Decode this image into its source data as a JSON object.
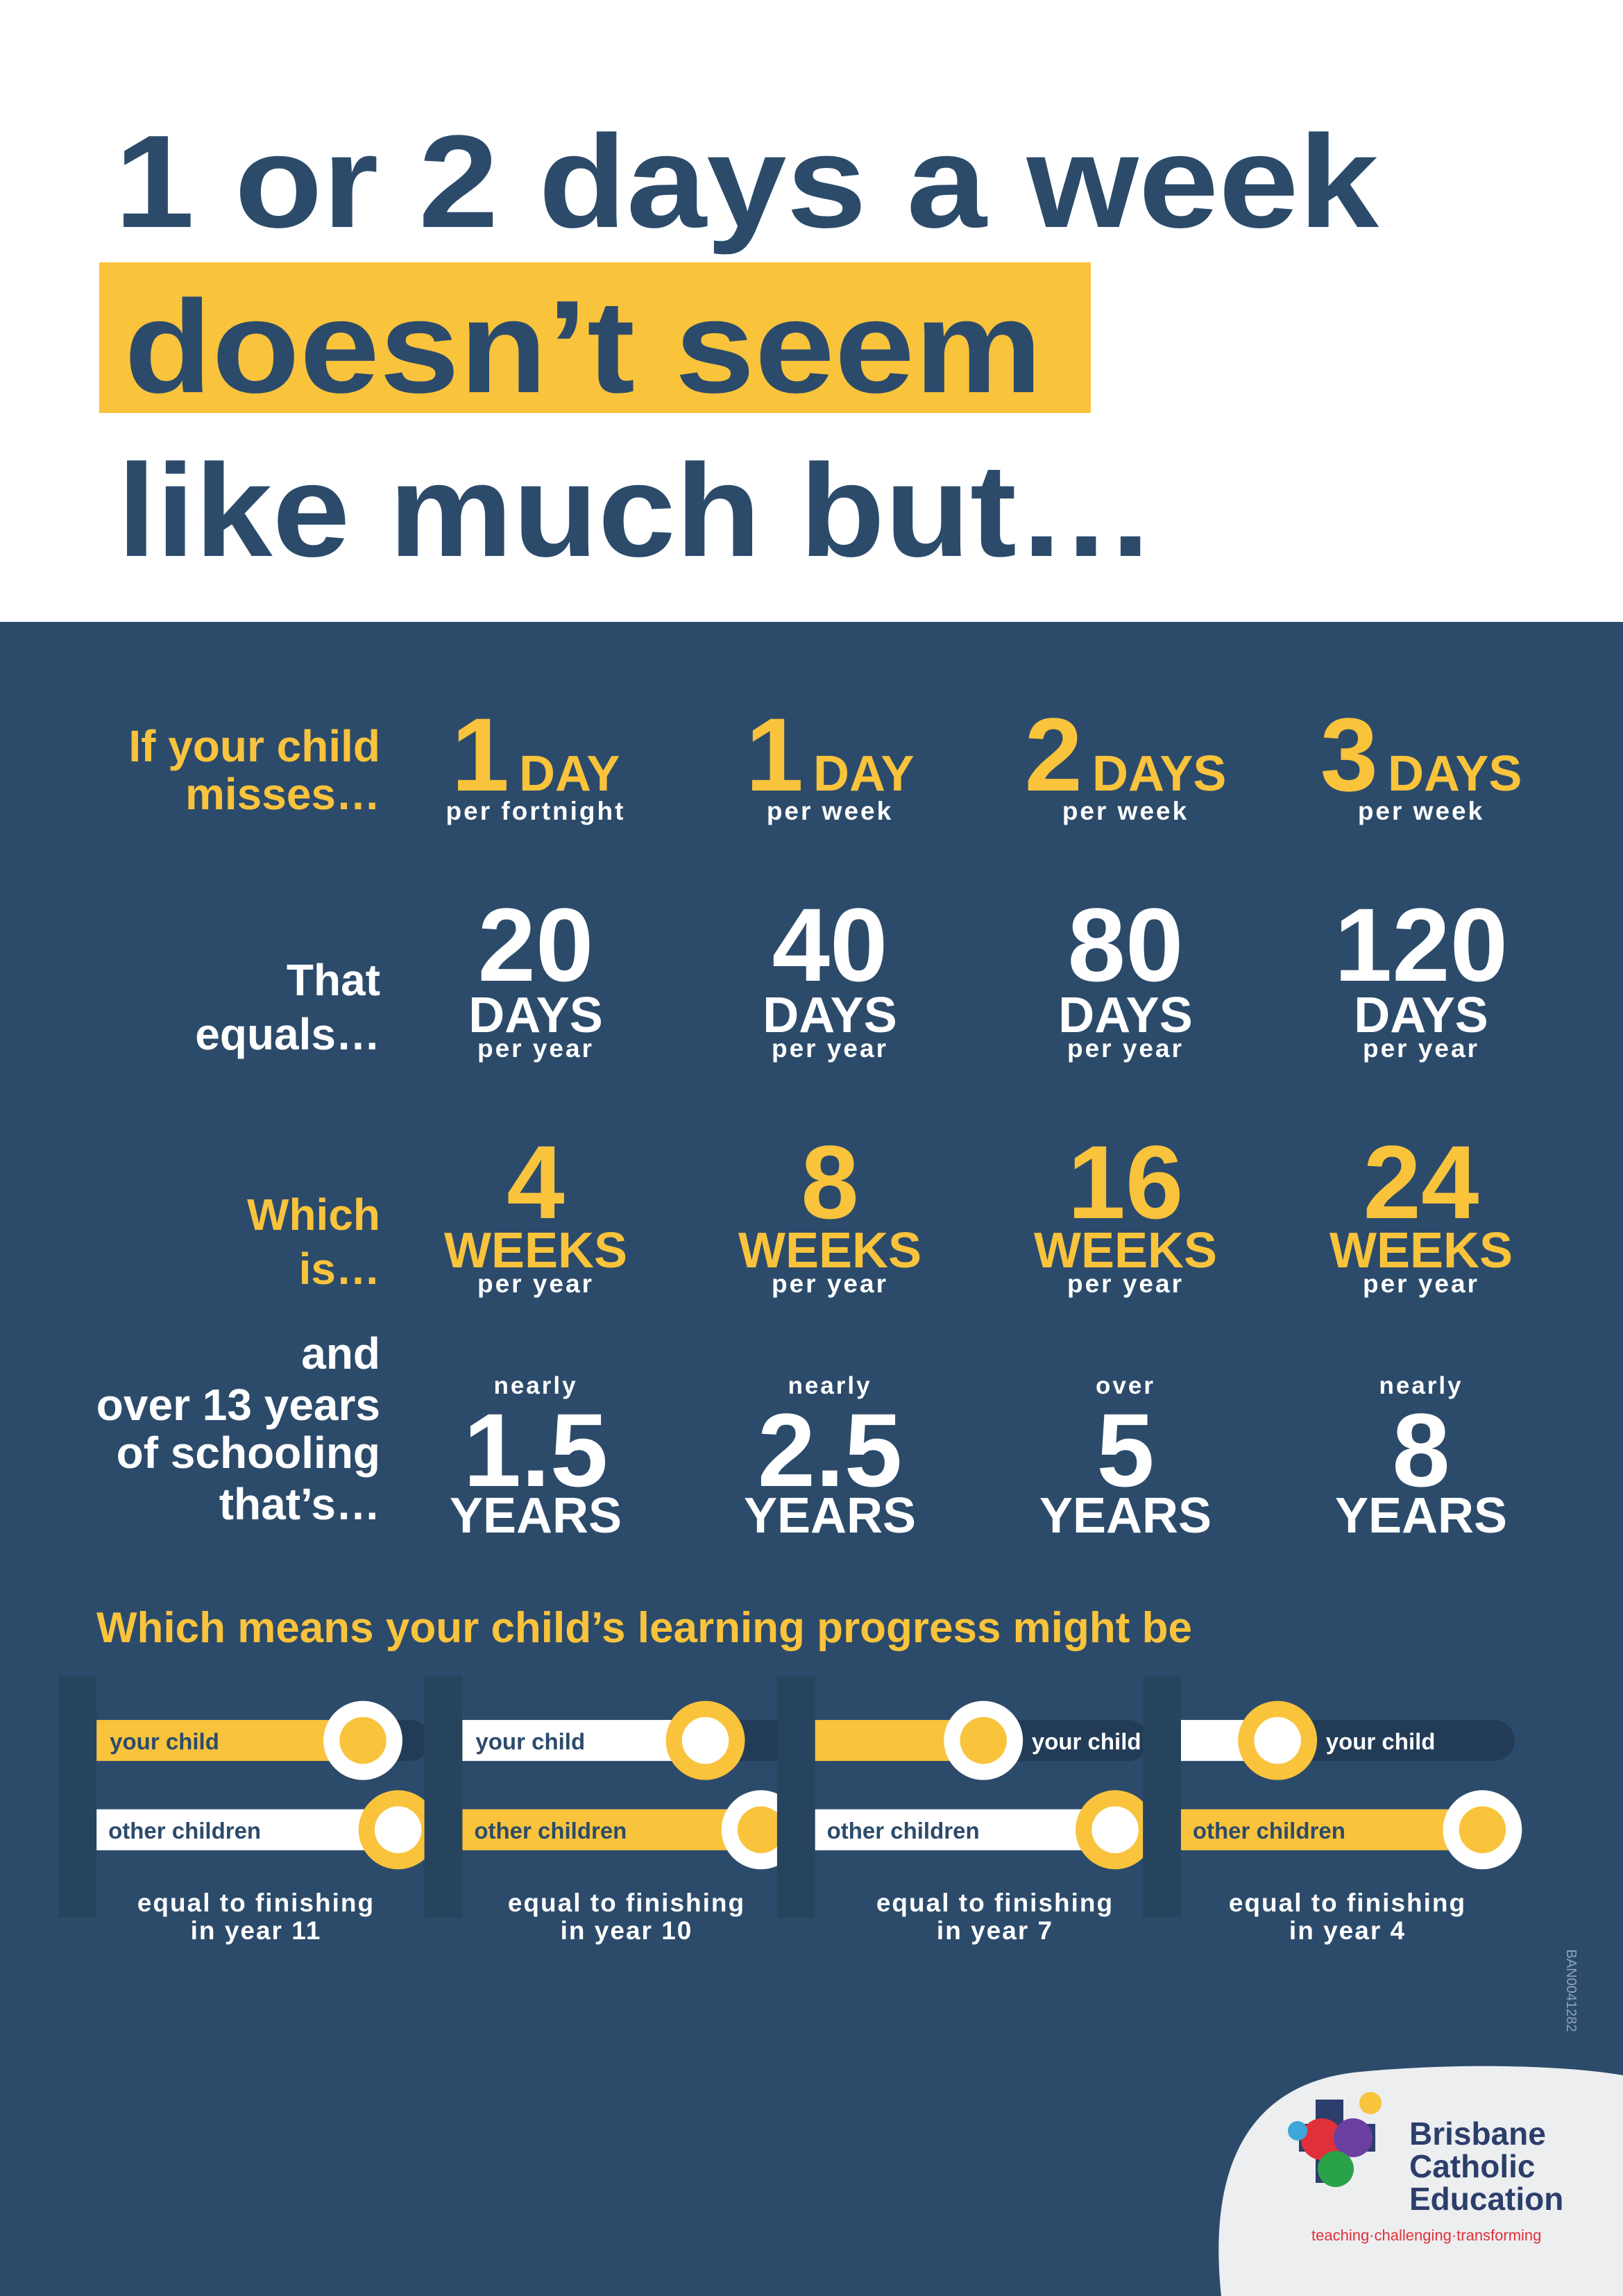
{
  "headline": [
    "1 or 2 days a week",
    "doesn’t seem",
    "like much but…"
  ],
  "rows": [
    {
      "label": [
        "If your child",
        "misses…"
      ],
      "cells": [
        {
          "number": "1",
          "unit": "DAY",
          "note": "per fortnight"
        },
        {
          "number": "1",
          "unit": "DAY",
          "note": "per week"
        },
        {
          "number": "2",
          "unit": "DAYS",
          "note": "per week"
        },
        {
          "number": "3",
          "unit": "DAYS",
          "note": "per week"
        }
      ]
    },
    {
      "label": [
        "That",
        "equals…"
      ],
      "cells": [
        {
          "number": "20",
          "unit": "DAYS",
          "note": "per year"
        },
        {
          "number": "40",
          "unit": "DAYS",
          "note": "per year"
        },
        {
          "number": "80",
          "unit": "DAYS",
          "note": "per year"
        },
        {
          "number": "120",
          "unit": "DAYS",
          "note": "per year"
        }
      ]
    },
    {
      "label": [
        "Which",
        "is…"
      ],
      "cells": [
        {
          "number": "4",
          "unit": "WEEKS",
          "note": "per year"
        },
        {
          "number": "8",
          "unit": "WEEKS",
          "note": "per year"
        },
        {
          "number": "16",
          "unit": "WEEKS",
          "note": "per year"
        },
        {
          "number": "24",
          "unit": "WEEKS",
          "note": "per year"
        }
      ]
    },
    {
      "label": [
        "and",
        "over 13 years",
        "of schooling",
        "that’s…"
      ],
      "cells": [
        {
          "prefix": "nearly",
          "number": "1.5",
          "unit": "YEARS"
        },
        {
          "prefix": "nearly",
          "number": "2.5",
          "unit": "YEARS"
        },
        {
          "prefix": "over",
          "number": "5",
          "unit": "YEARS"
        },
        {
          "prefix": "nearly",
          "number": "8",
          "unit": "YEARS"
        }
      ]
    }
  ],
  "progress": {
    "title": "Which means your child’s learning progress might be",
    "groups": [
      {
        "your": "your child",
        "other": "other children",
        "caption": [
          "equal to finishing",
          "in year 11"
        ]
      },
      {
        "your": "your child",
        "other": "other children",
        "caption": [
          "equal to finishing",
          "in year 10"
        ]
      },
      {
        "your": "your child",
        "other": "other children",
        "caption": [
          "equal to finishing",
          "in year 7"
        ]
      },
      {
        "your": "your child",
        "other": "other children",
        "caption": [
          "equal to finishing",
          "in year 4"
        ]
      }
    ]
  },
  "code": "BAN0041282",
  "logo": {
    "name": [
      "Brisbane",
      "Catholic",
      "Education"
    ],
    "tagline": "teaching·challenging·transforming"
  }
}
